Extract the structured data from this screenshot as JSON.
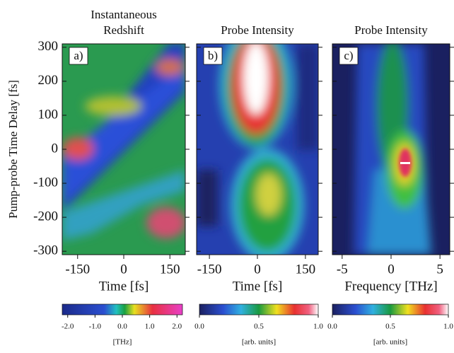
{
  "chart_data": {
    "type": "heatmap",
    "ylabel": "Pump-probe Time Delay [fs]",
    "ylim": [
      -310,
      310
    ],
    "yticks": [
      -300,
      -200,
      -100,
      0,
      100,
      200,
      300
    ],
    "panels": [
      {
        "label": "a)",
        "title": [
          "Instantaneous",
          "Redshift"
        ],
        "xlabel": "Time [fs]",
        "xlim": [
          -200,
          200
        ],
        "xticks": [
          -150,
          0,
          150
        ],
        "colorbar": {
          "lim": [
            -2.2,
            2.2
          ],
          "unit": "[THz]",
          "ticks": [
            {
              "value": -2,
              "label": "-2.0"
            },
            {
              "value": -1,
              "label": "-1.0"
            },
            {
              "value": 0,
              "label": "0.0"
            },
            {
              "value": 1,
              "label": "1.0"
            },
            {
              "value": 2,
              "label": "2.0"
            }
          ]
        }
      },
      {
        "label": "b)",
        "title": [
          "Probe Intensity"
        ],
        "xlabel": "Time [fs]",
        "xlim": [
          -190,
          190
        ],
        "xticks": [
          -150,
          0,
          150
        ],
        "colorbar": {
          "lim": [
            0,
            1
          ],
          "unit": "[arb. units]",
          "ticks": [
            {
              "value": 0,
              "label": "0.0"
            },
            0.5,
            {
              "value": 1,
              "label": "1.0"
            }
          ]
        }
      },
      {
        "label": "c)",
        "title": [
          "Probe Intensity"
        ],
        "xlabel": "Frequency [THz]",
        "xlim": [
          -6,
          6
        ],
        "xticks": [
          -5,
          0,
          5
        ],
        "colorbar": {
          "lim": [
            0,
            1
          ],
          "unit": "[arb. units]",
          "ticks": [
            {
              "value": 0,
              "label": "0.0"
            },
            0.5,
            {
              "value": 1,
              "label": "1.0"
            }
          ]
        }
      }
    ]
  }
}
